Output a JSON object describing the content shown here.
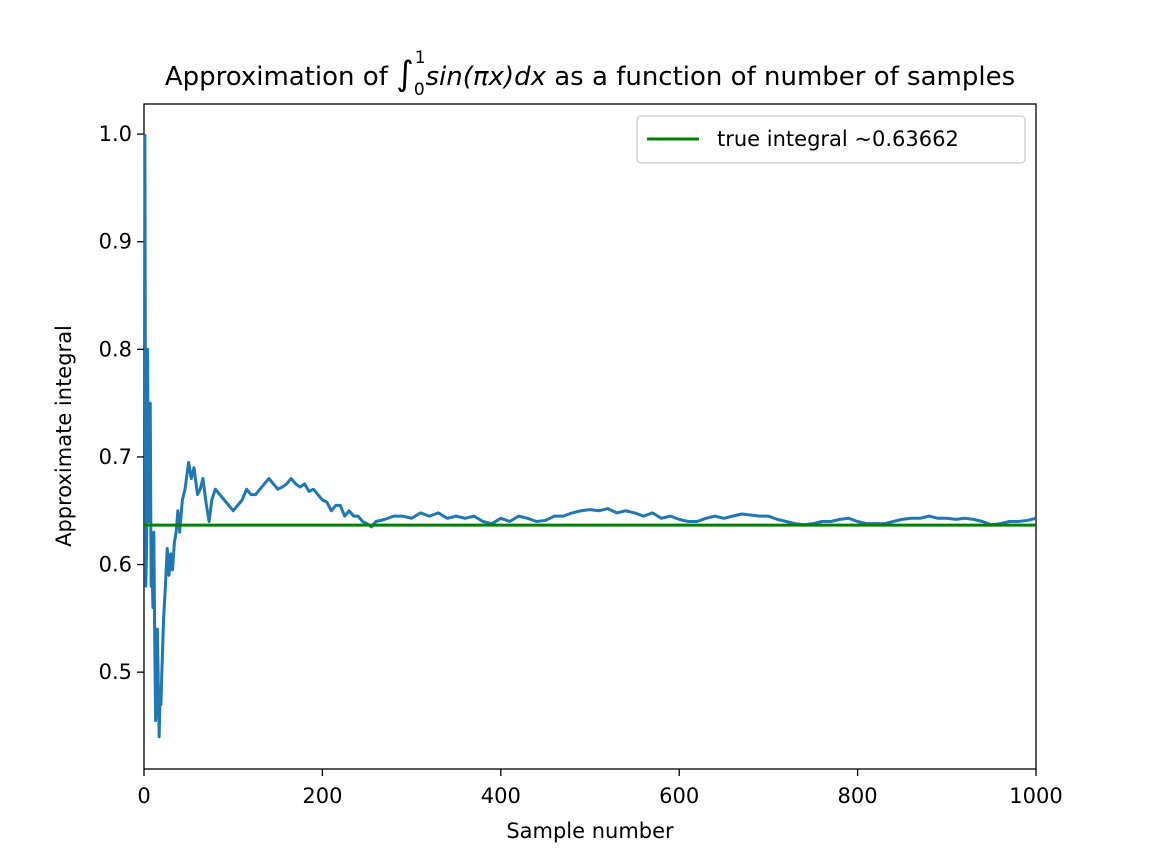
{
  "chart_data": {
    "type": "line",
    "title": {
      "prefix": "Approximation of ",
      "integral_sign": "∫",
      "lower_limit": "0",
      "upper_limit": "1",
      "integrand": "sin(πx)dx",
      "suffix": " as a function of number of samples"
    },
    "xlabel": "Sample number",
    "ylabel": "Approximate integral",
    "xlim": [
      0,
      1000
    ],
    "ylim": [
      0.41,
      1.028
    ],
    "xticks": [
      0,
      200,
      400,
      600,
      800,
      1000
    ],
    "xtick_labels": [
      "0",
      "200",
      "400",
      "600",
      "800",
      "1000"
    ],
    "yticks": [
      0.5,
      0.6,
      0.7,
      0.8,
      0.9,
      1.0
    ],
    "ytick_labels": [
      "0.5",
      "0.6",
      "0.7",
      "0.8",
      "0.9",
      "1.0"
    ],
    "grid": false,
    "legend_position": "top-right",
    "series": [
      {
        "color": "#1f77b4",
        "x": [
          1,
          2,
          3,
          4,
          5,
          6,
          7,
          8,
          9,
          10,
          11,
          12,
          13,
          14,
          15,
          16,
          17,
          18,
          19,
          20,
          22,
          24,
          26,
          28,
          30,
          32,
          34,
          36,
          38,
          40,
          43,
          46,
          50,
          53,
          56,
          60,
          63,
          66,
          70,
          73,
          76,
          80,
          85,
          90,
          95,
          100,
          105,
          110,
          115,
          120,
          125,
          130,
          135,
          140,
          145,
          150,
          155,
          160,
          165,
          170,
          175,
          180,
          185,
          190,
          195,
          200,
          205,
          210,
          215,
          220,
          225,
          230,
          235,
          240,
          245,
          250,
          255,
          260,
          270,
          280,
          290,
          300,
          310,
          320,
          330,
          340,
          350,
          360,
          370,
          380,
          390,
          400,
          410,
          420,
          430,
          440,
          450,
          460,
          470,
          480,
          490,
          500,
          510,
          520,
          530,
          540,
          550,
          560,
          570,
          580,
          590,
          600,
          610,
          620,
          630,
          640,
          650,
          660,
          670,
          680,
          690,
          700,
          710,
          720,
          730,
          740,
          750,
          760,
          770,
          780,
          790,
          800,
          810,
          820,
          830,
          840,
          850,
          860,
          870,
          880,
          890,
          900,
          910,
          920,
          930,
          940,
          950,
          960,
          970,
          980,
          990,
          1000
        ],
        "y": [
          1.0,
          0.58,
          0.62,
          0.8,
          0.64,
          0.69,
          0.75,
          0.58,
          0.6,
          0.56,
          0.63,
          0.53,
          0.455,
          0.47,
          0.54,
          0.49,
          0.44,
          0.48,
          0.47,
          0.5,
          0.55,
          0.58,
          0.615,
          0.59,
          0.61,
          0.595,
          0.62,
          0.63,
          0.65,
          0.63,
          0.66,
          0.67,
          0.695,
          0.68,
          0.69,
          0.665,
          0.67,
          0.68,
          0.655,
          0.64,
          0.66,
          0.67,
          0.665,
          0.66,
          0.655,
          0.65,
          0.655,
          0.66,
          0.67,
          0.665,
          0.665,
          0.67,
          0.675,
          0.68,
          0.675,
          0.67,
          0.672,
          0.675,
          0.68,
          0.675,
          0.672,
          0.675,
          0.668,
          0.67,
          0.665,
          0.66,
          0.658,
          0.65,
          0.655,
          0.655,
          0.645,
          0.65,
          0.645,
          0.645,
          0.64,
          0.638,
          0.635,
          0.64,
          0.642,
          0.645,
          0.645,
          0.643,
          0.648,
          0.645,
          0.648,
          0.643,
          0.645,
          0.643,
          0.645,
          0.64,
          0.638,
          0.643,
          0.64,
          0.645,
          0.643,
          0.64,
          0.641,
          0.645,
          0.645,
          0.648,
          0.65,
          0.651,
          0.65,
          0.652,
          0.648,
          0.65,
          0.648,
          0.645,
          0.648,
          0.643,
          0.645,
          0.642,
          0.64,
          0.64,
          0.643,
          0.645,
          0.643,
          0.645,
          0.647,
          0.646,
          0.645,
          0.645,
          0.642,
          0.64,
          0.638,
          0.637,
          0.638,
          0.64,
          0.64,
          0.642,
          0.643,
          0.64,
          0.638,
          0.638,
          0.638,
          0.64,
          0.642,
          0.643,
          0.643,
          0.645,
          0.643,
          0.643,
          0.642,
          0.643,
          0.642,
          0.64,
          0.637,
          0.638,
          0.64,
          0.64,
          0.641,
          0.643
        ]
      },
      {
        "name": "true integral ~0.63662",
        "color": "#008000",
        "x": [
          0,
          1000
        ],
        "y": [
          0.63662,
          0.63662
        ]
      }
    ]
  }
}
